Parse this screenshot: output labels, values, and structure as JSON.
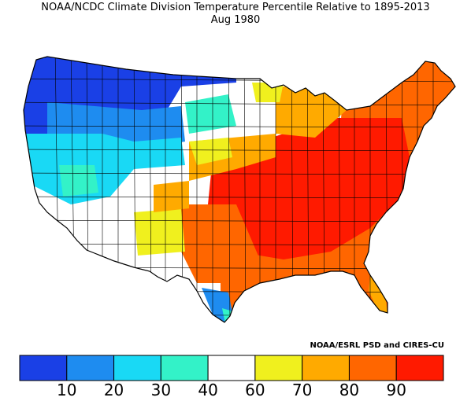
{
  "header": {
    "title": "NOAA/NCDC Climate Division Temperature Percentile Relative to 1895-2013",
    "subtitle": "Aug 1980"
  },
  "credit": "NOAA/ESRL PSD and CIRES-CU",
  "legend": {
    "bins": [
      {
        "color": "#1a40e6"
      },
      {
        "color": "#1e8cf0"
      },
      {
        "color": "#19d9f5"
      },
      {
        "color": "#33f2c8"
      },
      {
        "color": "#ffffff"
      },
      {
        "color": "#f0f01e"
      },
      {
        "color": "#ffaa00"
      },
      {
        "color": "#ff6600"
      },
      {
        "color": "#ff1a00"
      }
    ],
    "ticks": [
      "10",
      "20",
      "30",
      "40",
      "60",
      "70",
      "80",
      "90"
    ]
  },
  "map_regions": [
    {
      "region": "Pacific Northwest",
      "color": "#1a40e6"
    },
    {
      "region": "Northern Rockies",
      "color": "#1e8cf0"
    },
    {
      "region": "Northern Plains",
      "color": "#1a40e6"
    },
    {
      "region": "Great Basin",
      "color": "#19d9f5"
    },
    {
      "region": "California coast",
      "color": "#19d9f5"
    },
    {
      "region": "Nevada interior",
      "color": "#33f2c8"
    },
    {
      "region": "Southwest",
      "color": "#ffffff"
    },
    {
      "region": "Central Plains",
      "color": "#f0f01e"
    },
    {
      "region": "Southern Plains",
      "color": "#ff6600"
    },
    {
      "region": "Mississippi Valley",
      "color": "#ff1a00"
    },
    {
      "region": "Ohio Valley",
      "color": "#ff1a00"
    },
    {
      "region": "Southeast",
      "color": "#ff6600"
    },
    {
      "region": "Northeast",
      "color": "#ff6600"
    },
    {
      "region": "Great Lakes",
      "color": "#ffaa00"
    },
    {
      "region": "South Texas coast",
      "color": "#1e8cf0"
    }
  ]
}
